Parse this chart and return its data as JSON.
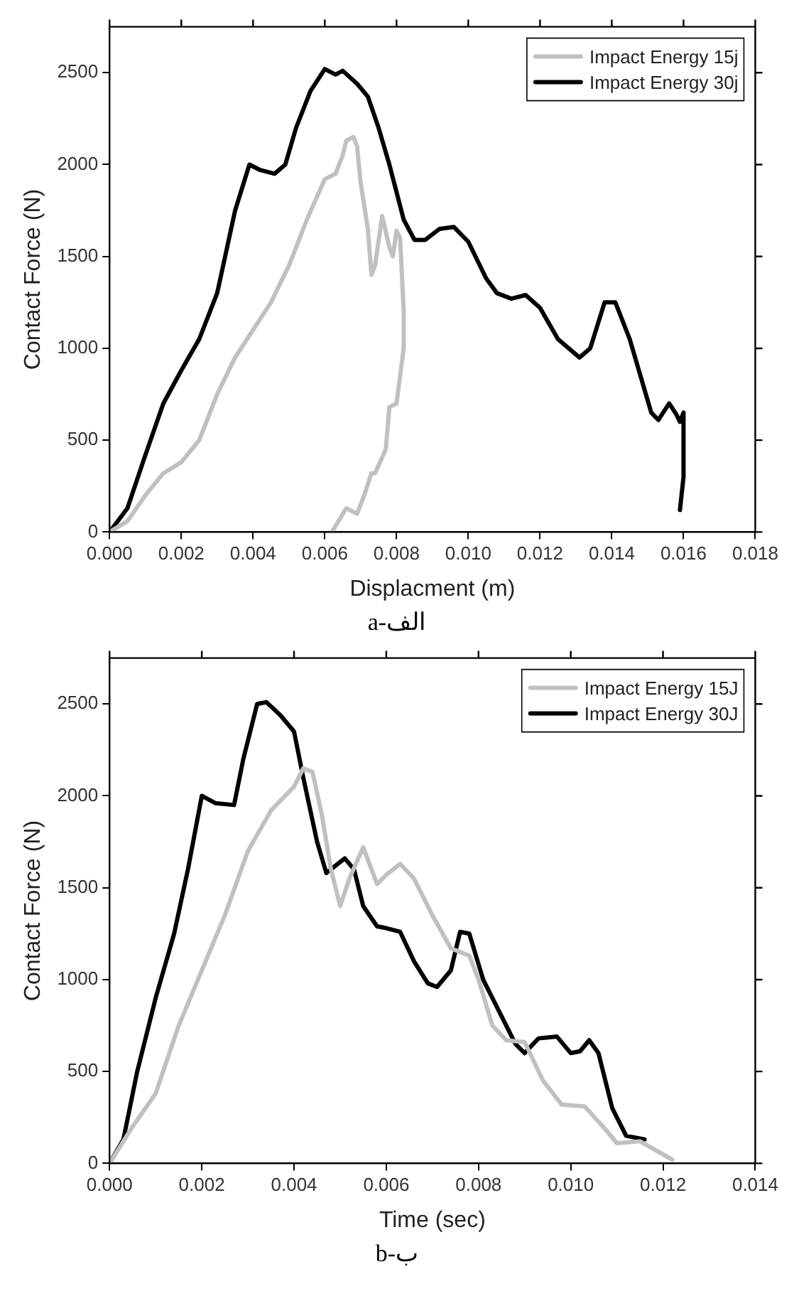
{
  "chart_data": [
    {
      "type": "line",
      "xlabel": "Displacment (m)",
      "ylabel": "Contact Force (N)",
      "annotations": [
        "a-الف"
      ],
      "xlim": [
        0,
        0.018
      ],
      "xticks": [
        {
          "value": 0,
          "label": "0.000"
        },
        {
          "value": 0.002,
          "label": "0.002"
        },
        {
          "value": 0.004,
          "label": "0.004"
        },
        {
          "value": 0.006,
          "label": "0.006"
        },
        {
          "value": 0.008,
          "label": "0.008"
        },
        {
          "value": 0.01,
          "label": "0.010"
        },
        {
          "value": 0.012,
          "label": "0.012"
        },
        {
          "value": 0.014,
          "label": "0.014"
        },
        {
          "value": 0.016,
          "label": "0.016"
        },
        {
          "value": 0.018,
          "label": "0.018"
        }
      ],
      "ylim": [
        0,
        2750
      ],
      "yticks": [
        0,
        500,
        1000,
        1500,
        2000,
        2500
      ],
      "grid": false,
      "legend": "top right",
      "marker": "none",
      "line_style": "solid",
      "series": [
        {
          "name": "Impact Energy 15j",
          "color": "#c0c0c0",
          "x": [
            0,
            0.0005,
            0.001,
            0.0015,
            0.002,
            0.0025,
            0.003,
            0.0035,
            0.004,
            0.0045,
            0.005,
            0.0055,
            0.006,
            0.0063,
            0.0065,
            0.0066,
            0.0068,
            0.0069,
            0.007,
            0.0072,
            0.0073,
            0.0074,
            0.0076,
            0.0078,
            0.0079,
            0.008,
            0.0081,
            0.0082,
            0.0082,
            0.0081,
            0.008,
            0.0078,
            0.0077,
            0.0074,
            0.0073,
            0.0071,
            0.0069,
            0.0066,
            0.0062
          ],
          "values": [
            0,
            60,
            200,
            320,
            380,
            500,
            750,
            950,
            1100,
            1250,
            1450,
            1700,
            1920,
            1950,
            2050,
            2130,
            2150,
            2100,
            1900,
            1650,
            1400,
            1450,
            1720,
            1550,
            1500,
            1640,
            1600,
            1200,
            1000,
            850,
            700,
            680,
            450,
            320,
            320,
            200,
            100,
            130,
            0
          ]
        },
        {
          "name": "Impact Energy 30j",
          "color": "#000000",
          "x": [
            0,
            0.0005,
            0.001,
            0.0015,
            0.002,
            0.0025,
            0.003,
            0.0035,
            0.0039,
            0.0042,
            0.0046,
            0.0049,
            0.0052,
            0.0056,
            0.006,
            0.0063,
            0.0065,
            0.0069,
            0.0072,
            0.0075,
            0.0078,
            0.0082,
            0.0085,
            0.0088,
            0.0092,
            0.0096,
            0.01,
            0.0105,
            0.0108,
            0.0112,
            0.0116,
            0.012,
            0.0125,
            0.0131,
            0.0134,
            0.0138,
            0.0141,
            0.0145,
            0.0148,
            0.0151,
            0.0153,
            0.0156,
            0.0158,
            0.0159,
            0.016,
            0.016,
            0.0159
          ],
          "values": [
            0,
            130,
            420,
            700,
            880,
            1050,
            1300,
            1750,
            2000,
            1970,
            1950,
            2000,
            2200,
            2400,
            2520,
            2490,
            2510,
            2440,
            2370,
            2200,
            2000,
            1700,
            1590,
            1590,
            1650,
            1660,
            1580,
            1380,
            1300,
            1270,
            1290,
            1220,
            1050,
            950,
            1000,
            1250,
            1250,
            1050,
            850,
            650,
            610,
            700,
            640,
            600,
            650,
            300,
            120
          ]
        }
      ]
    },
    {
      "type": "line",
      "xlabel": "Time (sec)",
      "ylabel": "Contact Force (N)",
      "annotations": [
        "b-ب"
      ],
      "xlim": [
        0,
        0.014
      ],
      "xticks": [
        {
          "value": 0,
          "label": "0.000"
        },
        {
          "value": 0.002,
          "label": "0.002"
        },
        {
          "value": 0.004,
          "label": "0.004"
        },
        {
          "value": 0.006,
          "label": "0.006"
        },
        {
          "value": 0.008,
          "label": "0.008"
        },
        {
          "value": 0.01,
          "label": "0.010"
        },
        {
          "value": 0.012,
          "label": "0.012"
        },
        {
          "value": 0.014,
          "label": "0.014"
        }
      ],
      "ylim": [
        0,
        2750
      ],
      "yticks": [
        0,
        500,
        1000,
        1500,
        2000,
        2500
      ],
      "grid": false,
      "legend": "top right",
      "marker": "none",
      "line_style": "solid",
      "series": [
        {
          "name": "Impact Energy 15J",
          "color": "#c0c0c0",
          "x": [
            0,
            0.0005,
            0.001,
            0.0015,
            0.002,
            0.0025,
            0.003,
            0.0035,
            0.004,
            0.0042,
            0.0044,
            0.0046,
            0.0048,
            0.005,
            0.0052,
            0.0055,
            0.0058,
            0.006,
            0.0063,
            0.0066,
            0.007,
            0.0074,
            0.0078,
            0.008,
            0.0083,
            0.0086,
            0.009,
            0.0094,
            0.0098,
            0.0103,
            0.0107,
            0.011,
            0.0115,
            0.0122
          ],
          "values": [
            0,
            200,
            380,
            750,
            1050,
            1350,
            1700,
            1920,
            2050,
            2150,
            2130,
            1900,
            1600,
            1400,
            1550,
            1720,
            1520,
            1570,
            1630,
            1550,
            1350,
            1170,
            1130,
            1000,
            750,
            670,
            660,
            450,
            320,
            310,
            200,
            110,
            120,
            20
          ]
        },
        {
          "name": "Impact Energy 30J",
          "color": "#000000",
          "x": [
            0,
            0.0003,
            0.0006,
            0.001,
            0.0014,
            0.0017,
            0.002,
            0.0023,
            0.0027,
            0.0029,
            0.0032,
            0.0034,
            0.0037,
            0.004,
            0.0042,
            0.0045,
            0.0047,
            0.0049,
            0.0051,
            0.0053,
            0.0055,
            0.0058,
            0.006,
            0.0063,
            0.0066,
            0.0069,
            0.0071,
            0.0074,
            0.0076,
            0.0078,
            0.0081,
            0.0085,
            0.0088,
            0.009,
            0.0093,
            0.0097,
            0.01,
            0.0102,
            0.0104,
            0.0106,
            0.0109,
            0.0112,
            0.0116
          ],
          "values": [
            0,
            130,
            500,
            900,
            1250,
            1600,
            2000,
            1960,
            1950,
            2200,
            2500,
            2510,
            2440,
            2350,
            2100,
            1750,
            1580,
            1620,
            1660,
            1600,
            1400,
            1290,
            1280,
            1260,
            1100,
            980,
            960,
            1050,
            1260,
            1250,
            1000,
            800,
            650,
            600,
            680,
            690,
            600,
            610,
            670,
            600,
            300,
            150,
            130
          ]
        }
      ]
    }
  ]
}
